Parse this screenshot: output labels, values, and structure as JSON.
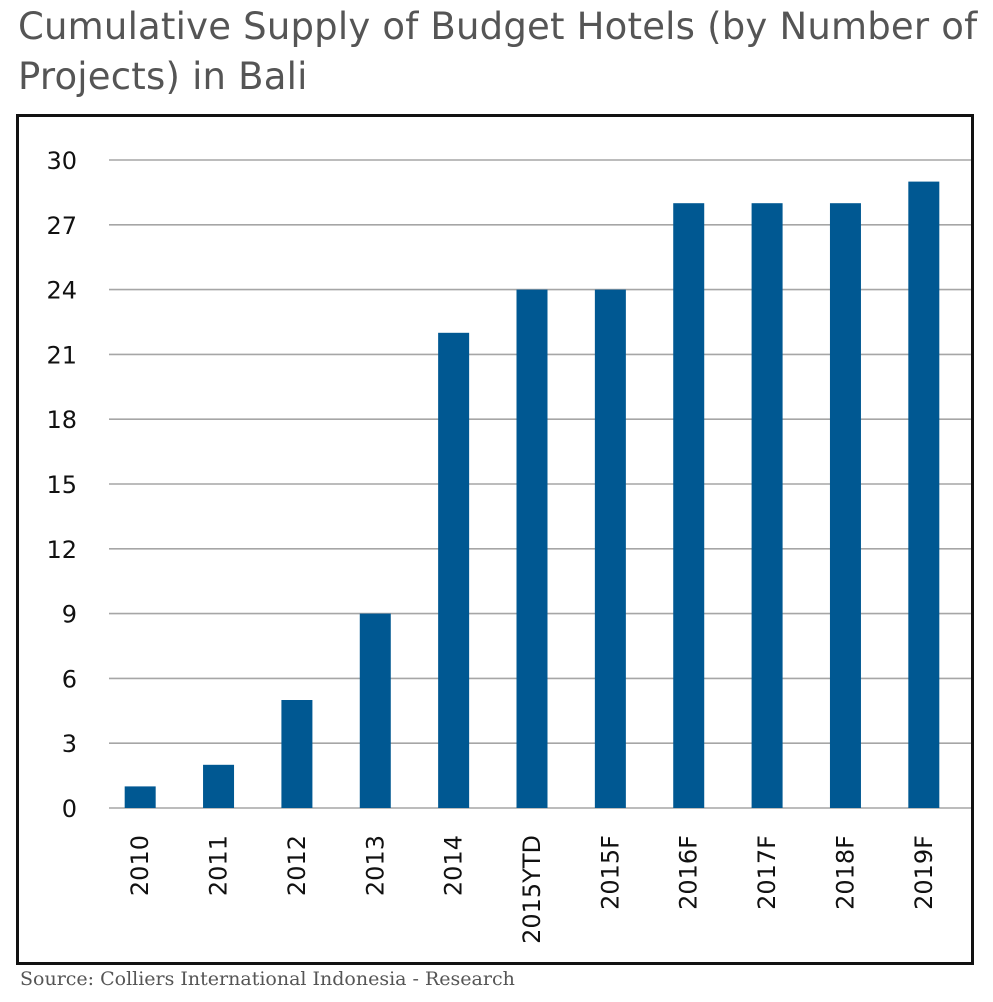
{
  "title": "Cumulative Supply of Budget Hotels (by Number of Projects) in Bali",
  "source": "Source: Colliers International Indonesia - Research",
  "colors": {
    "bar": "#005892",
    "grid": "#a6a6a6",
    "tick_text": "#111111"
  },
  "chart_data": {
    "type": "bar",
    "title": "Cumulative Supply of Budget Hotels (by Number of Projects) in Bali",
    "xlabel": "",
    "ylabel": "",
    "categories": [
      "2010",
      "2011",
      "2012",
      "2013",
      "2014",
      "2015YTD",
      "2015F",
      "2016F",
      "2017F",
      "2018F",
      "2019F"
    ],
    "values": [
      1,
      2,
      5,
      9,
      22,
      24,
      24,
      28,
      28,
      28,
      29
    ],
    "ylim": [
      0,
      30
    ],
    "yticks": [
      0,
      3,
      6,
      9,
      12,
      15,
      18,
      21,
      24,
      27,
      30
    ],
    "grid": true,
    "legend": "none",
    "x_tick_rotation": "vertical"
  }
}
